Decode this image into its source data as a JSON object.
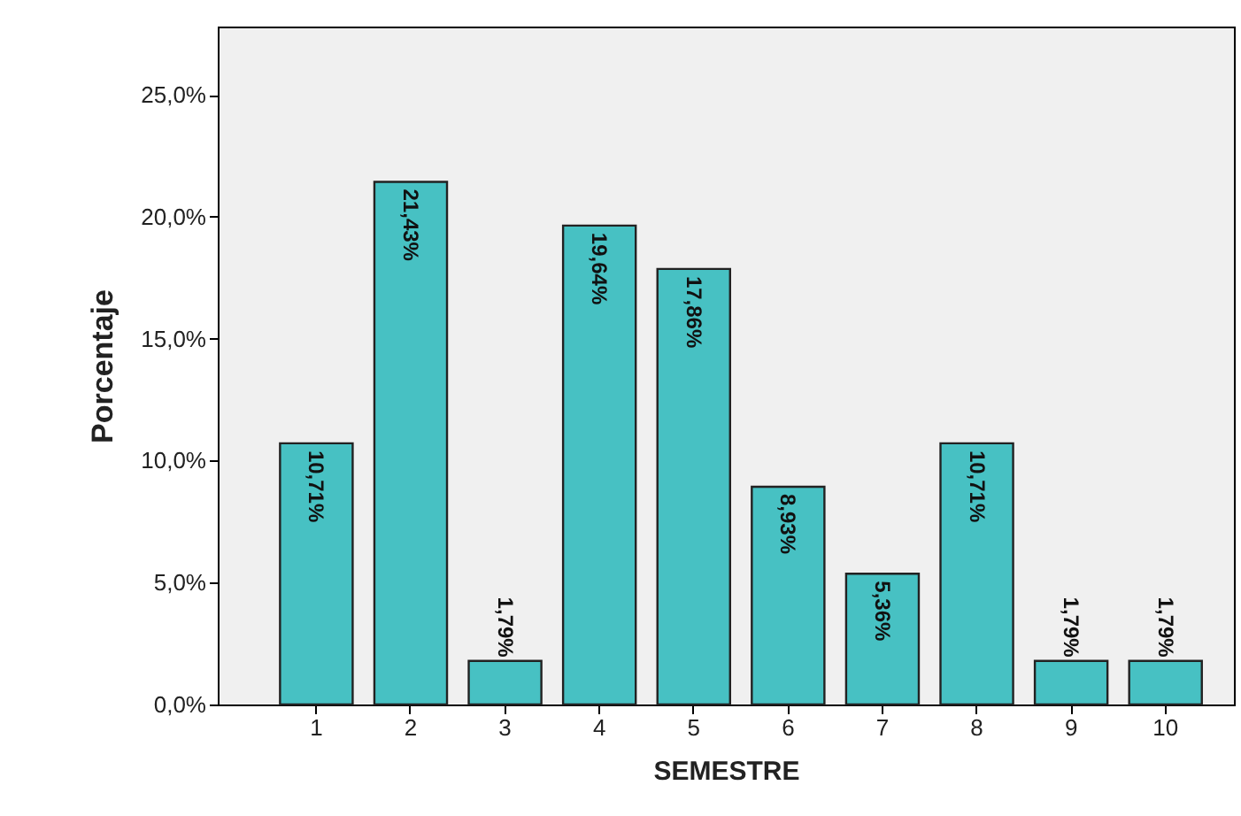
{
  "chart_data": {
    "type": "bar",
    "xlabel": "SEMESTRE",
    "ylabel": "Porcentaje",
    "categories": [
      "1",
      "2",
      "3",
      "4",
      "5",
      "6",
      "7",
      "8",
      "9",
      "10"
    ],
    "values": [
      10.71,
      21.43,
      1.79,
      19.64,
      17.86,
      8.93,
      5.36,
      10.71,
      1.79,
      1.79
    ],
    "value_labels": [
      "10,71%",
      "21,43%",
      "1,79%",
      "19,64%",
      "17,86%",
      "8,93%",
      "5,36%",
      "10,71%",
      "1,79%",
      "1,79%"
    ],
    "color": "#47c1c3",
    "ylim": [
      0,
      27.8
    ],
    "yticks": [
      {
        "value": 0,
        "label": "0,0%"
      },
      {
        "value": 5,
        "label": "5,0%"
      },
      {
        "value": 10,
        "label": "10,0%"
      },
      {
        "value": 15,
        "label": "15,0%"
      },
      {
        "value": 20,
        "label": "20,0%"
      },
      {
        "value": 25,
        "label": "25,0%"
      }
    ],
    "grid": false
  }
}
